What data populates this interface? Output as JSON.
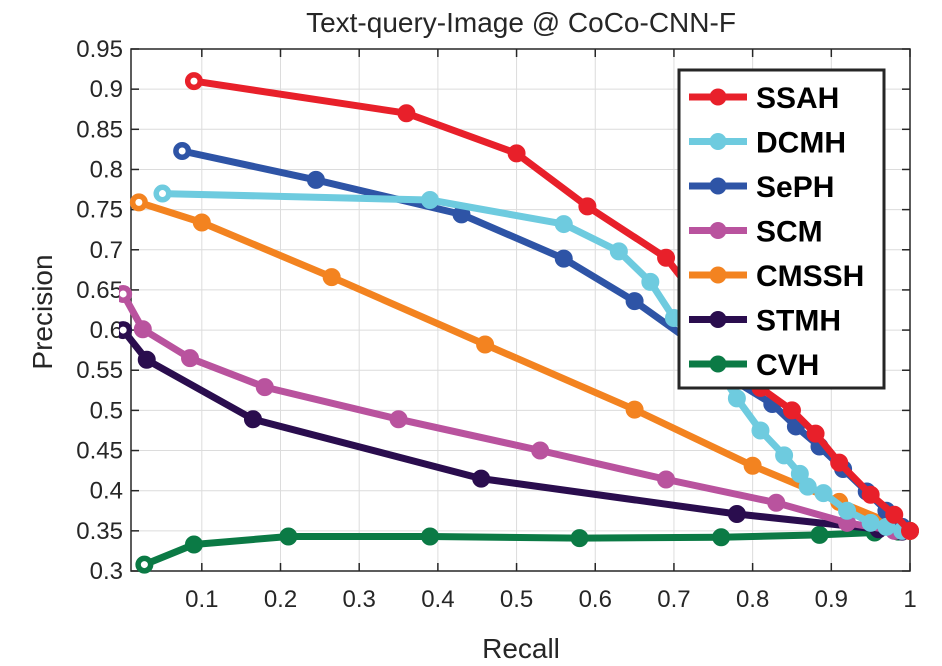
{
  "chart_data": {
    "type": "line",
    "title": "Text-query-Image @ CoCo-CNN-F",
    "xlabel": "Recall",
    "ylabel": "Precision",
    "xlim": [
      0.01,
      1.0
    ],
    "ylim": [
      0.3,
      0.95
    ],
    "xticks": [
      0.1,
      0.2,
      0.3,
      0.4,
      0.5,
      0.6,
      0.7,
      0.8,
      0.9,
      1.0
    ],
    "xtick_labels": [
      "0.1",
      "0.2",
      "0.3",
      "0.4",
      "0.5",
      "0.6",
      "0.7",
      "0.8",
      "0.9",
      "1"
    ],
    "yticks": [
      0.3,
      0.35,
      0.4,
      0.45,
      0.5,
      0.55,
      0.6,
      0.65,
      0.7,
      0.75,
      0.8,
      0.85,
      0.9,
      0.95
    ],
    "ytick_labels": [
      "0.3",
      "0.35",
      "0.4",
      "0.45",
      "0.5",
      "0.55",
      "0.6",
      "0.65",
      "0.7",
      "0.75",
      "0.8",
      "0.85",
      "0.9",
      "0.95"
    ],
    "grid": true,
    "legend_position": "top-right",
    "series": [
      {
        "name": "SSAH",
        "color": "#e8202a",
        "x": [
          0.09,
          0.36,
          0.5,
          0.59,
          0.69,
          0.73,
          0.77,
          0.81,
          0.85,
          0.88,
          0.91,
          0.95,
          0.98,
          1.0
        ],
        "y": [
          0.91,
          0.87,
          0.82,
          0.754,
          0.69,
          0.64,
          0.58,
          0.528,
          0.5,
          0.471,
          0.435,
          0.395,
          0.37,
          0.35
        ]
      },
      {
        "name": "DCMH",
        "color": "#6ecbdf",
        "x": [
          0.05,
          0.39,
          0.56,
          0.63,
          0.67,
          0.7,
          0.73,
          0.75,
          0.78,
          0.81,
          0.84,
          0.86,
          0.87,
          0.89,
          0.92,
          0.95,
          0.97,
          0.99
        ],
        "y": [
          0.77,
          0.762,
          0.732,
          0.698,
          0.66,
          0.615,
          0.585,
          0.56,
          0.515,
          0.475,
          0.444,
          0.421,
          0.405,
          0.397,
          0.375,
          0.36,
          0.355,
          0.35
        ]
      },
      {
        "name": "SePH",
        "color": "#2e54a6",
        "x": [
          0.075,
          0.245,
          0.43,
          0.56,
          0.65,
          0.73,
          0.775,
          0.825,
          0.855,
          0.885,
          0.915,
          0.945,
          0.97,
          0.99
        ],
        "y": [
          0.823,
          0.787,
          0.744,
          0.689,
          0.636,
          0.58,
          0.538,
          0.508,
          0.48,
          0.455,
          0.427,
          0.399,
          0.375,
          0.355
        ]
      },
      {
        "name": "SCM",
        "color": "#b9539e",
        "x": [
          0.0,
          0.025,
          0.085,
          0.18,
          0.35,
          0.53,
          0.69,
          0.83,
          0.92,
          0.98
        ],
        "y": [
          0.645,
          0.601,
          0.565,
          0.529,
          0.489,
          0.45,
          0.414,
          0.385,
          0.36,
          0.35
        ]
      },
      {
        "name": "CMSSH",
        "color": "#f38320",
        "x": [
          0.02,
          0.1,
          0.265,
          0.46,
          0.65,
          0.8,
          0.91,
          0.97,
          1.0
        ],
        "y": [
          0.759,
          0.734,
          0.666,
          0.582,
          0.501,
          0.431,
          0.386,
          0.362,
          0.35
        ]
      },
      {
        "name": "STMH",
        "color": "#2a0d4e",
        "x": [
          0.0,
          0.03,
          0.165,
          0.455,
          0.78,
          0.96,
          0.99
        ],
        "y": [
          0.6,
          0.563,
          0.489,
          0.415,
          0.371,
          0.352,
          0.349
        ]
      },
      {
        "name": "CVH",
        "color": "#0b7a45",
        "x": [
          0.027,
          0.09,
          0.21,
          0.39,
          0.58,
          0.76,
          0.885,
          0.955,
          0.985,
          1.0
        ],
        "y": [
          0.308,
          0.333,
          0.343,
          0.343,
          0.341,
          0.342,
          0.345,
          0.348,
          0.349,
          0.35
        ]
      }
    ]
  }
}
